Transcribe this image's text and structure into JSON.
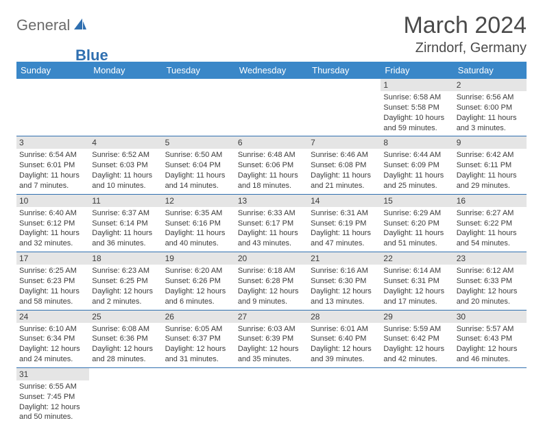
{
  "logo": {
    "general": "General",
    "blue": "Blue"
  },
  "title": "March 2024",
  "location": "Zirndorf, Germany",
  "colors": {
    "header_bg": "#3a87c8",
    "header_text": "#ffffff",
    "day_bar_bg": "#e5e5e5",
    "cell_border": "#2f6fb0",
    "logo_gray": "#6b6b6b",
    "logo_blue": "#2f6fb0",
    "text": "#3a3a3a"
  },
  "day_headers": [
    "Sunday",
    "Monday",
    "Tuesday",
    "Wednesday",
    "Thursday",
    "Friday",
    "Saturday"
  ],
  "weeks": [
    [
      null,
      null,
      null,
      null,
      null,
      {
        "n": "1",
        "sr": "Sunrise: 6:58 AM",
        "ss": "Sunset: 5:58 PM",
        "d1": "Daylight: 10 hours",
        "d2": "and 59 minutes."
      },
      {
        "n": "2",
        "sr": "Sunrise: 6:56 AM",
        "ss": "Sunset: 6:00 PM",
        "d1": "Daylight: 11 hours",
        "d2": "and 3 minutes."
      }
    ],
    [
      {
        "n": "3",
        "sr": "Sunrise: 6:54 AM",
        "ss": "Sunset: 6:01 PM",
        "d1": "Daylight: 11 hours",
        "d2": "and 7 minutes."
      },
      {
        "n": "4",
        "sr": "Sunrise: 6:52 AM",
        "ss": "Sunset: 6:03 PM",
        "d1": "Daylight: 11 hours",
        "d2": "and 10 minutes."
      },
      {
        "n": "5",
        "sr": "Sunrise: 6:50 AM",
        "ss": "Sunset: 6:04 PM",
        "d1": "Daylight: 11 hours",
        "d2": "and 14 minutes."
      },
      {
        "n": "6",
        "sr": "Sunrise: 6:48 AM",
        "ss": "Sunset: 6:06 PM",
        "d1": "Daylight: 11 hours",
        "d2": "and 18 minutes."
      },
      {
        "n": "7",
        "sr": "Sunrise: 6:46 AM",
        "ss": "Sunset: 6:08 PM",
        "d1": "Daylight: 11 hours",
        "d2": "and 21 minutes."
      },
      {
        "n": "8",
        "sr": "Sunrise: 6:44 AM",
        "ss": "Sunset: 6:09 PM",
        "d1": "Daylight: 11 hours",
        "d2": "and 25 minutes."
      },
      {
        "n": "9",
        "sr": "Sunrise: 6:42 AM",
        "ss": "Sunset: 6:11 PM",
        "d1": "Daylight: 11 hours",
        "d2": "and 29 minutes."
      }
    ],
    [
      {
        "n": "10",
        "sr": "Sunrise: 6:40 AM",
        "ss": "Sunset: 6:12 PM",
        "d1": "Daylight: 11 hours",
        "d2": "and 32 minutes."
      },
      {
        "n": "11",
        "sr": "Sunrise: 6:37 AM",
        "ss": "Sunset: 6:14 PM",
        "d1": "Daylight: 11 hours",
        "d2": "and 36 minutes."
      },
      {
        "n": "12",
        "sr": "Sunrise: 6:35 AM",
        "ss": "Sunset: 6:16 PM",
        "d1": "Daylight: 11 hours",
        "d2": "and 40 minutes."
      },
      {
        "n": "13",
        "sr": "Sunrise: 6:33 AM",
        "ss": "Sunset: 6:17 PM",
        "d1": "Daylight: 11 hours",
        "d2": "and 43 minutes."
      },
      {
        "n": "14",
        "sr": "Sunrise: 6:31 AM",
        "ss": "Sunset: 6:19 PM",
        "d1": "Daylight: 11 hours",
        "d2": "and 47 minutes."
      },
      {
        "n": "15",
        "sr": "Sunrise: 6:29 AM",
        "ss": "Sunset: 6:20 PM",
        "d1": "Daylight: 11 hours",
        "d2": "and 51 minutes."
      },
      {
        "n": "16",
        "sr": "Sunrise: 6:27 AM",
        "ss": "Sunset: 6:22 PM",
        "d1": "Daylight: 11 hours",
        "d2": "and 54 minutes."
      }
    ],
    [
      {
        "n": "17",
        "sr": "Sunrise: 6:25 AM",
        "ss": "Sunset: 6:23 PM",
        "d1": "Daylight: 11 hours",
        "d2": "and 58 minutes."
      },
      {
        "n": "18",
        "sr": "Sunrise: 6:23 AM",
        "ss": "Sunset: 6:25 PM",
        "d1": "Daylight: 12 hours",
        "d2": "and 2 minutes."
      },
      {
        "n": "19",
        "sr": "Sunrise: 6:20 AM",
        "ss": "Sunset: 6:26 PM",
        "d1": "Daylight: 12 hours",
        "d2": "and 6 minutes."
      },
      {
        "n": "20",
        "sr": "Sunrise: 6:18 AM",
        "ss": "Sunset: 6:28 PM",
        "d1": "Daylight: 12 hours",
        "d2": "and 9 minutes."
      },
      {
        "n": "21",
        "sr": "Sunrise: 6:16 AM",
        "ss": "Sunset: 6:30 PM",
        "d1": "Daylight: 12 hours",
        "d2": "and 13 minutes."
      },
      {
        "n": "22",
        "sr": "Sunrise: 6:14 AM",
        "ss": "Sunset: 6:31 PM",
        "d1": "Daylight: 12 hours",
        "d2": "and 17 minutes."
      },
      {
        "n": "23",
        "sr": "Sunrise: 6:12 AM",
        "ss": "Sunset: 6:33 PM",
        "d1": "Daylight: 12 hours",
        "d2": "and 20 minutes."
      }
    ],
    [
      {
        "n": "24",
        "sr": "Sunrise: 6:10 AM",
        "ss": "Sunset: 6:34 PM",
        "d1": "Daylight: 12 hours",
        "d2": "and 24 minutes."
      },
      {
        "n": "25",
        "sr": "Sunrise: 6:08 AM",
        "ss": "Sunset: 6:36 PM",
        "d1": "Daylight: 12 hours",
        "d2": "and 28 minutes."
      },
      {
        "n": "26",
        "sr": "Sunrise: 6:05 AM",
        "ss": "Sunset: 6:37 PM",
        "d1": "Daylight: 12 hours",
        "d2": "and 31 minutes."
      },
      {
        "n": "27",
        "sr": "Sunrise: 6:03 AM",
        "ss": "Sunset: 6:39 PM",
        "d1": "Daylight: 12 hours",
        "d2": "and 35 minutes."
      },
      {
        "n": "28",
        "sr": "Sunrise: 6:01 AM",
        "ss": "Sunset: 6:40 PM",
        "d1": "Daylight: 12 hours",
        "d2": "and 39 minutes."
      },
      {
        "n": "29",
        "sr": "Sunrise: 5:59 AM",
        "ss": "Sunset: 6:42 PM",
        "d1": "Daylight: 12 hours",
        "d2": "and 42 minutes."
      },
      {
        "n": "30",
        "sr": "Sunrise: 5:57 AM",
        "ss": "Sunset: 6:43 PM",
        "d1": "Daylight: 12 hours",
        "d2": "and 46 minutes."
      }
    ],
    [
      {
        "n": "31",
        "sr": "Sunrise: 6:55 AM",
        "ss": "Sunset: 7:45 PM",
        "d1": "Daylight: 12 hours",
        "d2": "and 50 minutes."
      },
      null,
      null,
      null,
      null,
      null,
      null
    ]
  ]
}
